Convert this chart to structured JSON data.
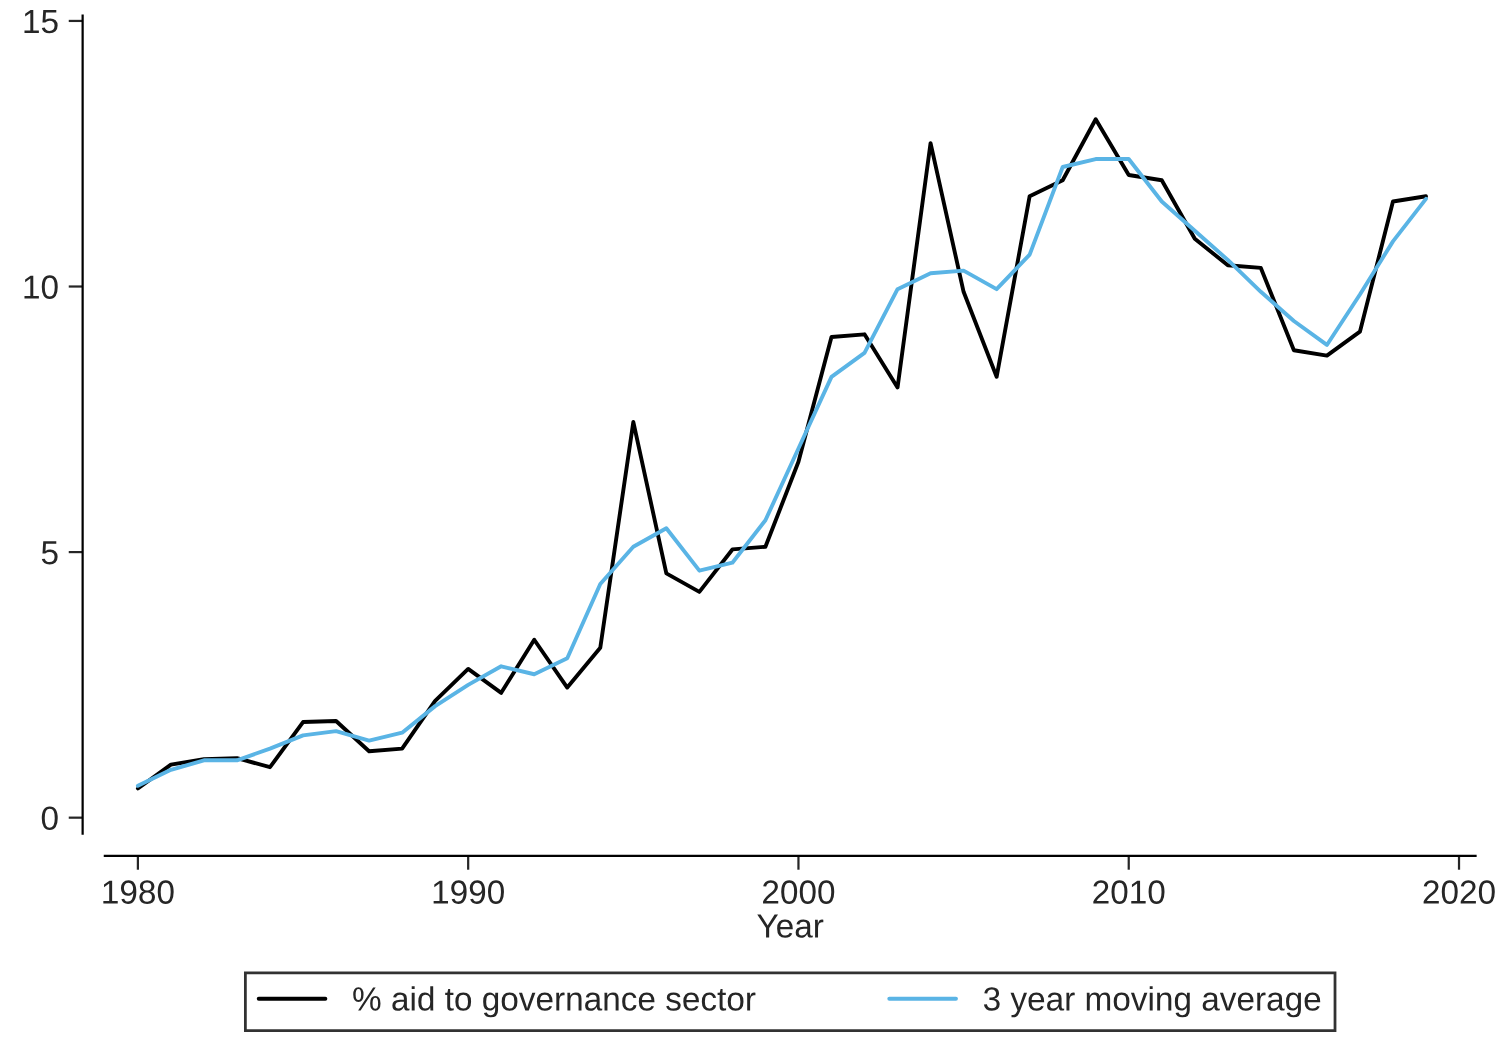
{
  "chart_data": {
    "type": "line",
    "xlabel": "Year",
    "x": [
      1980,
      1981,
      1982,
      1983,
      1984,
      1985,
      1986,
      1987,
      1988,
      1989,
      1990,
      1991,
      1992,
      1993,
      1994,
      1995,
      1996,
      1997,
      1998,
      1999,
      2000,
      2001,
      2002,
      2003,
      2004,
      2005,
      2006,
      2007,
      2008,
      2009,
      2010,
      2011,
      2012,
      2013,
      2014,
      2015,
      2016,
      2017,
      2018,
      2019
    ],
    "series": [
      {
        "name": "% aid to governance sector",
        "color": "#000000",
        "values": [
          0.55,
          1.0,
          1.1,
          1.12,
          0.95,
          1.8,
          1.82,
          1.25,
          1.3,
          2.2,
          2.8,
          2.35,
          3.35,
          2.45,
          3.2,
          7.45,
          4.6,
          4.25,
          5.05,
          5.1,
          6.7,
          9.05,
          9.1,
          8.1,
          12.7,
          9.9,
          8.3,
          11.7,
          12.0,
          13.15,
          12.1,
          12.0,
          10.9,
          10.4,
          10.35,
          8.8,
          8.7,
          9.15,
          11.6,
          11.7
        ]
      },
      {
        "name": "3 year moving average",
        "color": "#5ab4e5",
        "values": [
          0.6,
          0.9,
          1.08,
          1.08,
          1.3,
          1.55,
          1.63,
          1.45,
          1.6,
          2.1,
          2.5,
          2.85,
          2.7,
          3.0,
          4.4,
          5.1,
          5.45,
          4.65,
          4.8,
          5.6,
          6.95,
          8.3,
          8.75,
          9.95,
          10.25,
          10.3,
          9.95,
          10.6,
          12.25,
          12.4,
          12.4,
          11.6,
          11.05,
          10.5,
          9.9,
          9.35,
          8.9,
          9.85,
          10.85,
          11.65
        ]
      }
    ],
    "xlim": [
      1979,
      2020.5
    ],
    "xticks": [
      1980,
      1990,
      2000,
      2010,
      2020
    ],
    "ylim": [
      -0.3,
      15.1
    ],
    "yticks": [
      0,
      5,
      10,
      15
    ],
    "grid": false,
    "legend": "bottom",
    "marker": "none",
    "line_style": "solid"
  }
}
